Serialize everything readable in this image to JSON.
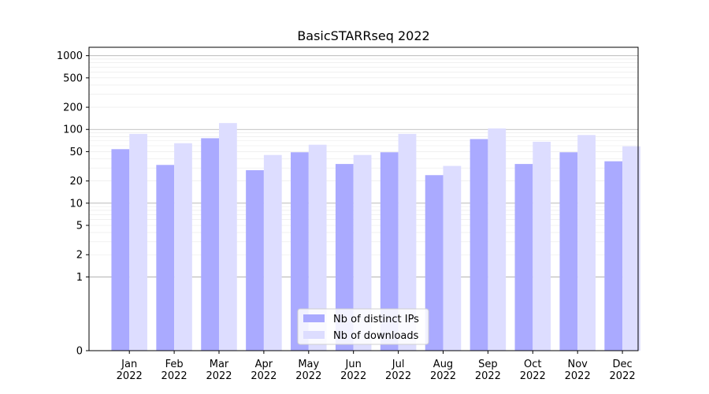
{
  "chart_data": {
    "type": "bar",
    "title": "BasicSTARRseq 2022",
    "xlabel": "",
    "ylabel": "",
    "y_scale": "symlog",
    "ylim": [
      0,
      1300
    ],
    "y_ticks": [
      0,
      1,
      2,
      5,
      10,
      20,
      50,
      100,
      200,
      500,
      1000
    ],
    "y_tick_labels": [
      "0",
      "1",
      "2",
      "5",
      "10",
      "20",
      "50",
      "100",
      "200",
      "500",
      "1000"
    ],
    "grid": "horizontal",
    "categories": [
      "Jan\n2022",
      "Feb\n2022",
      "Mar\n2022",
      "Apr\n2022",
      "May\n2022",
      "Jun\n2022",
      "Jul\n2022",
      "Aug\n2022",
      "Sep\n2022",
      "Oct\n2022",
      "Nov\n2022",
      "Dec\n2022"
    ],
    "series": [
      {
        "name": "Nb of distinct IPs",
        "color": "#aaaaff",
        "values": [
          54,
          33,
          76,
          28,
          49,
          34,
          49,
          24,
          74,
          34,
          49,
          37
        ]
      },
      {
        "name": "Nb of downloads",
        "color": "#ddddff",
        "values": [
          87,
          65,
          122,
          45,
          62,
          45,
          87,
          32,
          103,
          68,
          84,
          59
        ]
      }
    ],
    "legend_position": "bottom-center"
  }
}
